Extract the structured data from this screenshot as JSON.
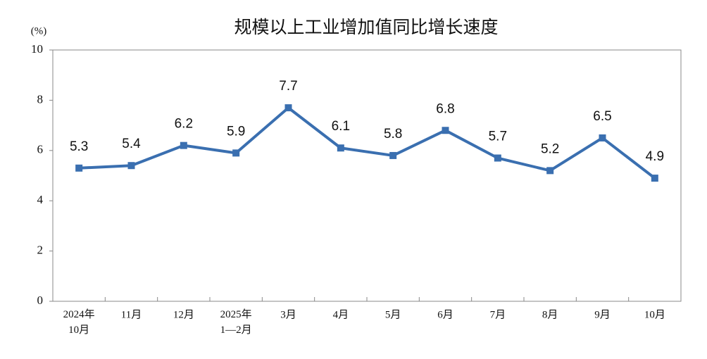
{
  "chart_data": {
    "type": "line",
    "title": "规模以上工业增加值同比增长速度",
    "y_label": "(%)",
    "categories": [
      "2024年\n10月",
      "11月",
      "12月",
      "2025年\n1—2月",
      "3月",
      "4月",
      "5月",
      "6月",
      "7月",
      "8月",
      "9月",
      "10月"
    ],
    "series": [
      {
        "name": "规模以上工业增加值同比增长速度",
        "color": "#3a6fb0",
        "values": [
          5.3,
          5.4,
          6.2,
          5.9,
          7.7,
          6.1,
          5.8,
          6.8,
          5.7,
          5.2,
          6.5,
          4.9
        ]
      }
    ],
    "ylim": [
      0,
      10
    ],
    "yticks": [
      0,
      2,
      4,
      6,
      8,
      10
    ],
    "grid": false,
    "data_labels": true
  }
}
